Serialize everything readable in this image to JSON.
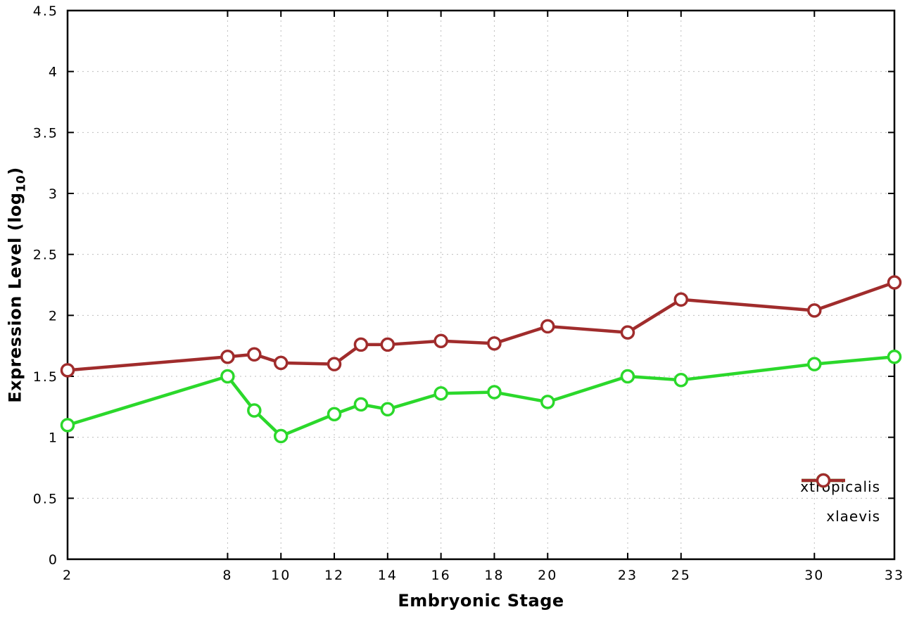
{
  "chart_data": {
    "type": "line",
    "title": "",
    "xlabel": "Embryonic Stage",
    "ylabel": "Expression Level (log10)",
    "ylabel_parts": {
      "prefix": "Expression Level (log",
      "sub": "10",
      "suffix": ")"
    },
    "x": [
      2,
      8,
      9,
      10,
      12,
      13,
      14,
      16,
      18,
      20,
      23,
      25,
      30,
      33
    ],
    "series": [
      {
        "name": "xtropicalis",
        "color": "#2bd82b",
        "values": [
          1.1,
          1.5,
          1.22,
          1.01,
          1.19,
          1.27,
          1.23,
          1.36,
          1.37,
          1.29,
          1.5,
          1.47,
          1.6,
          1.66
        ]
      },
      {
        "name": "xlaevis",
        "color": "#a02c2c",
        "values": [
          1.55,
          1.66,
          1.68,
          1.61,
          1.6,
          1.76,
          1.76,
          1.79,
          1.77,
          1.91,
          1.86,
          2.13,
          2.04,
          2.27
        ]
      }
    ],
    "xlim": [
      2,
      33
    ],
    "ylim": [
      0,
      4.5
    ],
    "xticks": [
      2,
      8,
      10,
      12,
      14,
      16,
      18,
      20,
      23,
      25,
      30,
      33
    ],
    "yticks": [
      0,
      0.5,
      1,
      1.5,
      2,
      2.5,
      3,
      3.5,
      4,
      4.5
    ],
    "grid": true,
    "legend_position": "bottom-right",
    "marker": "open-circle"
  }
}
